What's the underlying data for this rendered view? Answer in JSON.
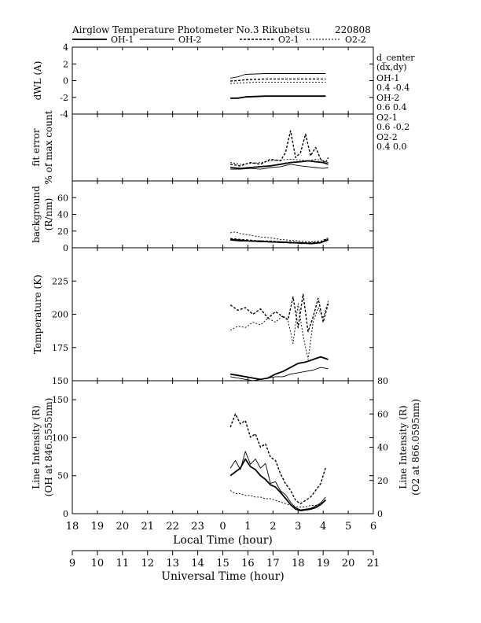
{
  "header": {
    "title": "Airglow Temperature Photometer No.3  Rikubetsu",
    "date_code": "220808"
  },
  "legend": [
    {
      "name": "OH-1",
      "dash": "solid",
      "width": 1.8
    },
    {
      "name": "OH-2",
      "dash": "solid",
      "width": 0.9
    },
    {
      "name": "O2-1",
      "dash": "dashed",
      "width": 1.4
    },
    {
      "name": "O2-2",
      "dash": "dotted",
      "width": 0.9
    }
  ],
  "side_notes": {
    "title": "d_center",
    "subtitle": "(dx,dy)",
    "entries": [
      {
        "label": "OH-1",
        "value": "0.4   -0.4"
      },
      {
        "label": "OH-2",
        "value": "0.6   0.4"
      },
      {
        "label": "O2-1",
        "value": "0.6   -0.2"
      },
      {
        "label": "O2-2",
        "value": "0.4   0.0"
      }
    ]
  },
  "chart_data": {
    "type": "line",
    "x_local_label": "Local Time (hour)",
    "x_universal_label": "Universal Time (hour)",
    "x_range_local": [
      18,
      30
    ],
    "local_ticks": [
      "18",
      "19",
      "20",
      "21",
      "22",
      "23",
      "0",
      "1",
      "2",
      "3",
      "4",
      "5",
      "6"
    ],
    "universal_ticks": [
      "9",
      "10",
      "11",
      "12",
      "13",
      "14",
      "15",
      "16",
      "17",
      "18",
      "19",
      "20",
      "21"
    ],
    "panels": [
      {
        "id": "dwl",
        "ylabel": [
          "dWL (A)"
        ],
        "ylim": [
          -4,
          4
        ],
        "yticks": [
          "4",
          "2",
          "0",
          "-2",
          "-4"
        ],
        "series": [
          {
            "name": "OH-1",
            "x": [
              24.3,
              24.6,
              24.9,
              25.3,
              25.7,
              26.1,
              26.5,
              26.9,
              27.3,
              27.7,
              28.1
            ],
            "y": [
              -2.1,
              -2.1,
              -1.95,
              -1.9,
              -1.85,
              -1.85,
              -1.85,
              -1.85,
              -1.85,
              -1.85,
              -1.85
            ]
          },
          {
            "name": "OH-2",
            "x": [
              24.3,
              24.6,
              24.9,
              25.3,
              25.7,
              26.1,
              26.5,
              26.9,
              27.3,
              27.7,
              28.1
            ],
            "y": [
              0.3,
              0.45,
              0.75,
              0.8,
              0.85,
              0.85,
              0.85,
              0.85,
              0.85,
              0.85,
              0.85
            ]
          },
          {
            "name": "O2-1",
            "x": [
              24.3,
              24.6,
              24.9,
              25.3,
              25.7,
              26.1,
              26.5,
              26.9,
              27.3,
              27.7,
              28.1
            ],
            "y": [
              -0.05,
              0.0,
              0.1,
              0.15,
              0.2,
              0.2,
              0.2,
              0.2,
              0.2,
              0.2,
              0.2
            ]
          },
          {
            "name": "O2-2",
            "x": [
              24.3,
              24.6,
              24.9,
              25.3,
              25.7,
              26.1,
              26.5,
              26.9,
              27.3,
              27.7,
              28.1
            ],
            "y": [
              -0.35,
              -0.3,
              -0.25,
              -0.2,
              -0.2,
              -0.2,
              -0.2,
              -0.2,
              -0.2,
              -0.2,
              -0.2
            ]
          }
        ]
      },
      {
        "id": "fit_error",
        "ylabel": [
          "fit error",
          "% of max count"
        ],
        "ylim": [
          0,
          4
        ],
        "yticks": [],
        "series": [
          {
            "name": "OH-1",
            "x": [
              24.3,
              24.7,
              25.1,
              25.5,
              25.9,
              26.3,
              26.7,
              27.1,
              27.4,
              27.7,
              28.0,
              28.2
            ],
            "y": [
              0.8,
              0.75,
              0.8,
              0.85,
              0.9,
              1.0,
              1.1,
              1.15,
              1.2,
              1.15,
              1.1,
              1.0
            ]
          },
          {
            "name": "OH-2",
            "x": [
              24.3,
              24.7,
              25.1,
              25.5,
              25.9,
              26.3,
              26.7,
              27.1,
              27.4,
              27.7,
              28.0,
              28.2
            ],
            "y": [
              0.7,
              0.7,
              0.75,
              0.7,
              0.8,
              0.85,
              1.0,
              0.9,
              0.85,
              0.8,
              0.75,
              0.8
            ]
          },
          {
            "name": "O2-1",
            "x": [
              24.3,
              24.7,
              25.1,
              25.5,
              25.9,
              26.3,
              26.5,
              26.7,
              26.9,
              27.1,
              27.3,
              27.5,
              27.7,
              27.9,
              28.1,
              28.2
            ],
            "y": [
              1.0,
              0.9,
              1.1,
              1.0,
              1.3,
              1.2,
              1.7,
              3.0,
              1.4,
              1.7,
              2.8,
              1.5,
              2.0,
              1.3,
              1.1,
              1.4
            ]
          },
          {
            "name": "O2-2",
            "x": [
              24.3,
              24.7,
              25.1,
              25.5,
              25.9,
              26.3,
              26.7,
              27.1,
              27.4,
              27.7,
              28.0,
              28.2
            ],
            "y": [
              1.1,
              1.0,
              1.05,
              1.1,
              1.2,
              1.25,
              1.3,
              1.25,
              1.2,
              1.3,
              1.2,
              1.1
            ]
          }
        ]
      },
      {
        "id": "background",
        "ylabel": [
          "background",
          "(R/nm)"
        ],
        "ylim": [
          0,
          80
        ],
        "yticks": [
          "60",
          "40",
          "20",
          "0"
        ],
        "series": [
          {
            "name": "OH-1",
            "x": [
              24.3,
              24.7,
              25.1,
              25.5,
              25.9,
              26.3,
              26.7,
              27.1,
              27.5,
              27.9,
              28.2
            ],
            "y": [
              10,
              9,
              8,
              8,
              7,
              7,
              6,
              6,
              5,
              6,
              10
            ]
          },
          {
            "name": "OH-2",
            "x": [
              24.3,
              24.7,
              25.1,
              25.5,
              25.9,
              26.3,
              26.7,
              27.1,
              27.5,
              27.9,
              28.2
            ],
            "y": [
              9,
              8,
              8,
              7,
              7,
              6,
              6,
              5,
              5,
              6,
              9
            ]
          },
          {
            "name": "O2-1",
            "x": [
              24.3,
              24.7,
              25.1,
              25.5,
              25.9,
              26.3,
              26.7,
              27.1,
              27.5,
              27.9,
              28.2
            ],
            "y": [
              11,
              10,
              9,
              8,
              8,
              7,
              7,
              6,
              6,
              7,
              11
            ]
          },
          {
            "name": "O2-2",
            "x": [
              24.3,
              24.5,
              24.7,
              25.1,
              25.5,
              25.9,
              26.3,
              26.7,
              27.1,
              27.5,
              27.9,
              28.2
            ],
            "y": [
              18,
              19,
              17,
              15,
              13,
              12,
              10,
              9,
              8,
              7,
              8,
              12
            ]
          }
        ]
      },
      {
        "id": "temperature",
        "ylabel": [
          "Temperature (K)"
        ],
        "ylim": [
          150,
          250
        ],
        "yticks": [
          "225",
          "200",
          "175",
          "150"
        ],
        "series": [
          {
            "name": "OH-1",
            "x": [
              24.3,
              24.6,
              24.9,
              25.2,
              25.5,
              25.8,
              26.1,
              26.4,
              26.7,
              27.0,
              27.3,
              27.6,
              27.9,
              28.2
            ],
            "y": [
              155,
              154,
              153,
              152,
              151,
              152,
              155,
              157,
              160,
              163,
              164,
              166,
              168,
              166
            ]
          },
          {
            "name": "OH-2",
            "x": [
              24.3,
              24.6,
              24.9,
              25.2,
              25.5,
              25.8,
              26.1,
              26.4,
              26.7,
              27.0,
              27.3,
              27.6,
              27.9,
              28.2
            ],
            "y": [
              153,
              152,
              151,
              150,
              151,
              152,
              153,
              153,
              155,
              156,
              157,
              158,
              160,
              159
            ]
          },
          {
            "name": "O2-1",
            "x": [
              24.3,
              24.6,
              24.9,
              25.2,
              25.5,
              25.8,
              26.1,
              26.4,
              26.6,
              26.8,
              27.0,
              27.2,
              27.4,
              27.6,
              27.8,
              28.0,
              28.2
            ],
            "y": [
              207,
              203,
              205,
              200,
              204,
              197,
              202,
              198,
              196,
              213,
              190,
              215,
              187,
              198,
              212,
              194,
              208
            ]
          },
          {
            "name": "O2-2",
            "x": [
              24.3,
              24.6,
              24.9,
              25.2,
              25.5,
              25.8,
              26.1,
              26.4,
              26.6,
              26.8,
              27.0,
              27.2,
              27.4,
              27.6,
              27.8,
              28.0,
              28.2
            ],
            "y": [
              188,
              191,
              190,
              194,
              192,
              197,
              194,
              199,
              195,
              178,
              208,
              184,
              166,
              194,
              205,
              197,
              210
            ]
          }
        ]
      },
      {
        "id": "intensity",
        "ylabel": [
          "Line Intensity (R)",
          "(OH at 846.5555nm)"
        ],
        "ylabel_right": [
          "Line Intensity (R)",
          "(O2 at 866.0595nm)"
        ],
        "ylim": [
          0,
          175
        ],
        "yticks": [
          "150",
          "100",
          "50",
          "0"
        ],
        "ylim_right": [
          0,
          80
        ],
        "yticks_right": [
          "80",
          "60",
          "40",
          "20",
          "0"
        ],
        "series": [
          {
            "name": "OH-1",
            "axis": "left",
            "x": [
              24.3,
              24.5,
              24.7,
              24.9,
              25.1,
              25.3,
              25.5,
              25.7,
              25.9,
              26.1,
              26.3,
              26.5,
              26.7,
              26.9,
              27.1,
              27.3,
              27.5,
              27.7,
              27.9,
              28.1
            ],
            "y": [
              50,
              55,
              60,
              72,
              62,
              58,
              50,
              45,
              38,
              35,
              28,
              20,
              12,
              6,
              4,
              5,
              6,
              8,
              12,
              18
            ]
          },
          {
            "name": "OH-2",
            "axis": "left",
            "x": [
              24.3,
              24.5,
              24.7,
              24.9,
              25.1,
              25.3,
              25.5,
              25.7,
              25.9,
              26.1,
              26.3,
              26.5,
              26.7,
              26.9,
              27.1,
              27.3,
              27.5,
              27.7,
              27.9,
              28.1
            ],
            "y": [
              60,
              70,
              58,
              82,
              65,
              72,
              60,
              66,
              40,
              42,
              30,
              25,
              15,
              8,
              5,
              6,
              7,
              10,
              14,
              22
            ]
          },
          {
            "name": "O2-1",
            "axis": "right",
            "x": [
              24.3,
              24.5,
              24.7,
              24.9,
              25.1,
              25.3,
              25.5,
              25.7,
              25.9,
              26.1,
              26.3,
              26.5,
              26.7,
              26.9,
              27.1,
              27.3,
              27.5,
              27.7,
              27.9,
              28.1
            ],
            "y": [
              52,
              60,
              54,
              56,
              46,
              48,
              40,
              42,
              34,
              32,
              24,
              18,
              14,
              8,
              6,
              8,
              10,
              14,
              18,
              28
            ]
          },
          {
            "name": "O2-2",
            "axis": "right",
            "x": [
              24.3,
              24.5,
              24.7,
              24.9,
              25.1,
              25.3,
              25.5,
              25.7,
              25.9,
              26.1,
              26.3,
              26.5,
              26.7,
              26.9,
              27.1,
              27.3,
              27.5,
              27.7,
              27.9,
              28.1
            ],
            "y": [
              14,
              12,
              12,
              11,
              11,
              10,
              10,
              9,
              9,
              8,
              7,
              6,
              5,
              4,
              4,
              4,
              5,
              5,
              6,
              8
            ]
          }
        ]
      }
    ]
  }
}
